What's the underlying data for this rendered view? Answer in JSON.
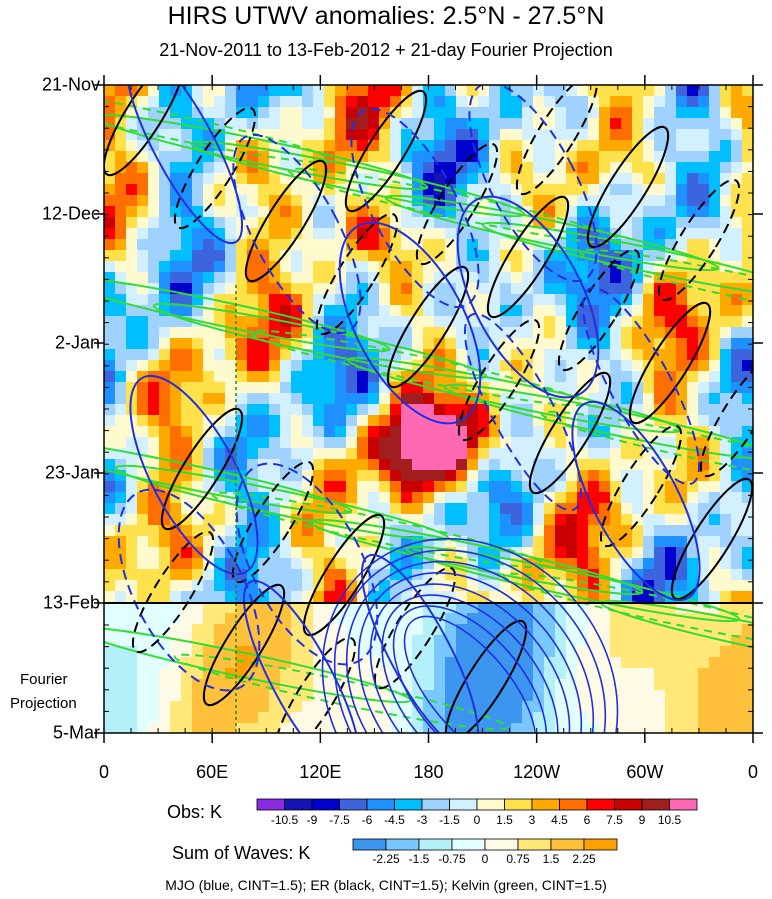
{
  "title": "HIRS UTWV anomalies: 2.5°N - 27.5°N",
  "subtitle": "21-Nov-2011 to 13-Feb-2012 + 21-day Fourier Projection",
  "projection_label": [
    "Fourier",
    "Projection"
  ],
  "footer": "MJO (blue, CINT=1.5); ER (black, CINT=1.5); Kelvin (green, CINT=1.5)",
  "chart_data": {
    "type": "heatmap",
    "title": "HIRS UTWV anomalies: 2.5°N - 27.5°N",
    "subtitle": "21-Nov-2011 to 13-Feb-2012 + 21-day Fourier Projection",
    "x_axis": {
      "ticks": [
        "0",
        "60E",
        "120E",
        "180",
        "120W",
        "60W",
        "0"
      ],
      "range": [
        0,
        360
      ]
    },
    "y_axis": {
      "ticks": [
        "21-Nov",
        "12-Dec",
        "2-Jan",
        "23-Jan",
        "13-Feb",
        "5-Mar"
      ],
      "inverted": true
    },
    "observation_end": "13-Feb",
    "fourier_projection_days": 21,
    "colorbars": [
      {
        "label": "Obs: K",
        "levels": [
          "-10.5",
          "-9",
          "-7.5",
          "-6",
          "-4.5",
          "-3",
          "-1.5",
          "0",
          "1.5",
          "3",
          "4.5",
          "6",
          "7.5",
          "9",
          "10.5"
        ],
        "colors": [
          "#8a2be2",
          "#1414b4",
          "#0000cd",
          "#3c64dc",
          "#1e90ff",
          "#00bfff",
          "#a0d2ff",
          "#d2f0ff",
          "#fffacd",
          "#ffe14b",
          "#ffaa00",
          "#ff6e00",
          "#ff0000",
          "#c80000",
          "#a01e1e",
          "#ff69b4"
        ]
      },
      {
        "label": "Sum of Waves: K",
        "levels": [
          "-2.25",
          "-1.5",
          "-0.75",
          "0",
          "0.75",
          "1.5",
          "2.25"
        ],
        "colors": [
          "#3c96f0",
          "#78c8ff",
          "#b4f0fa",
          "#e1ffff",
          "#fffae6",
          "#ffe878",
          "#ffc03c",
          "#ffa000"
        ]
      }
    ],
    "contours": [
      {
        "name": "MJO",
        "color": "#0000ff",
        "cint": 1.5
      },
      {
        "name": "ER",
        "color": "#000000",
        "cint": 1.5
      },
      {
        "name": "Kelvin",
        "color": "#00ff00",
        "cint": 1.5
      }
    ]
  }
}
